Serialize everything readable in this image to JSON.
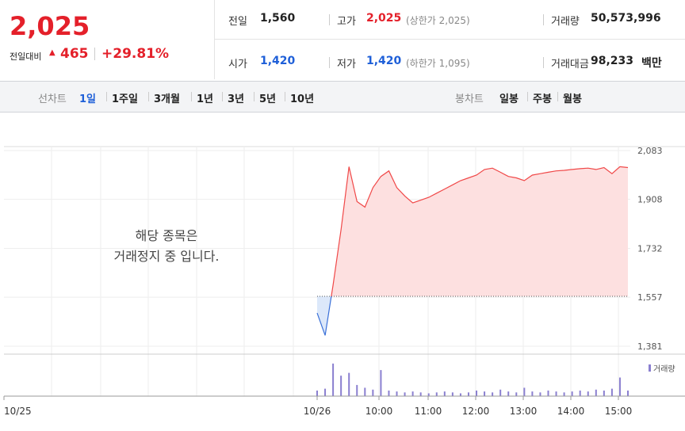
{
  "header": {
    "price": "2,025",
    "change_label": "전일대비",
    "change": "465",
    "change_rate": "+29.81%",
    "stats": [
      {
        "label": "전일",
        "value": "1,560"
      },
      {
        "label": "고가",
        "value": "2,025",
        "note": "(상한가 2,025)"
      },
      {
        "label": "거래량",
        "value": "50,573,996"
      },
      {
        "label": "시가",
        "value": "1,420"
      },
      {
        "label": "저가",
        "value": "1,420",
        "note": "(하한가 1,095)"
      },
      {
        "label": "거래대금",
        "value": "98,233",
        "unit": "백만"
      }
    ]
  },
  "tabs": {
    "line_label": "선차트",
    "line": [
      "1일",
      "1주일",
      "3개월",
      "1년",
      "3년",
      "5년",
      "10년"
    ],
    "candle_label": "봉차트",
    "candle": [
      "일봉",
      "주봉",
      "월봉"
    ]
  },
  "notice": [
    "해당 종목은",
    "거래정지 중 입니다."
  ],
  "chart_data": {
    "type": "line",
    "ylim": [
      1381,
      2083
    ],
    "yticks": [
      {
        "value": 2083,
        "label": "2,083"
      },
      {
        "value": 1908,
        "label": "1,908"
      },
      {
        "value": 1732,
        "label": "1,732"
      },
      {
        "value": 1557,
        "label": "1,557"
      },
      {
        "value": 1381,
        "label": "1,381"
      }
    ],
    "xticks": [
      "10/25",
      "10/26",
      "10:00",
      "11:00",
      "12:00",
      "13:00",
      "14:00",
      "15:00"
    ],
    "reference_line": 1560,
    "series": [
      {
        "color": "#f04848",
        "values": [
          1500,
          1420,
          1600,
          1800,
          2025,
          1900,
          1880,
          1950,
          1990,
          2010,
          1950,
          1920,
          1895,
          1905,
          1915,
          1930,
          1945,
          1960,
          1975,
          1985,
          1995,
          2015,
          2020,
          2005,
          1990,
          1985,
          1975,
          1995,
          2000,
          2005,
          2010,
          2012,
          2015,
          2018,
          2020,
          2015,
          2022,
          2000,
          2025,
          2022
        ]
      }
    ],
    "volume": {
      "name": "거래량",
      "color": "#8a7fd0",
      "ylim": [
        0,
        40
      ],
      "values": [
        6,
        8,
        35,
        22,
        25,
        12,
        9,
        7,
        28,
        6,
        5,
        4,
        5,
        4,
        3,
        4,
        5,
        4,
        3,
        4,
        6,
        5,
        4,
        7,
        5,
        4,
        9,
        5,
        4,
        6,
        5,
        4,
        5,
        6,
        5,
        7,
        6,
        8,
        20,
        6
      ]
    }
  }
}
